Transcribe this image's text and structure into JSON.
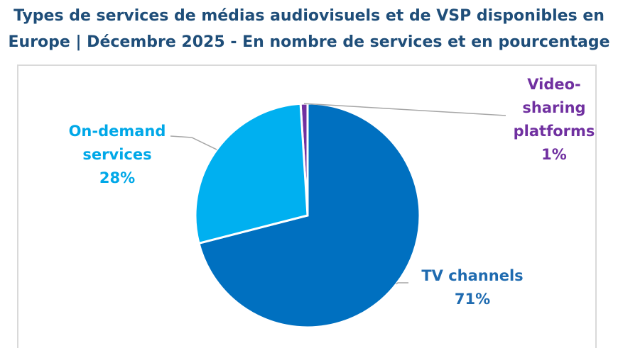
{
  "title_line1": "Types de services de médias audiovisuels et de VSP disponibles en",
  "title_line2": "Europe | Décembre 2025 - En nombre de services et en pourcentage",
  "chart_data": {
    "type": "pie",
    "title": "Types de services de médias audiovisuels et de VSP disponibles en Europe | Décembre 2025 - En nombre de services et en pourcentage",
    "slices": [
      {
        "label": "Video-sharing platforms",
        "value": 1,
        "pct_text": "1%",
        "color": "#7030a0",
        "label_color": "#7030a0"
      },
      {
        "label": "TV channels",
        "value": 71,
        "pct_text": "71%",
        "color": "#0070c0",
        "label_color": "#1f6bb0"
      },
      {
        "label": "On-demand services",
        "value": 28,
        "pct_text": "28%",
        "color": "#00b0f0",
        "label_color": "#00a8e8"
      }
    ]
  },
  "labels": {
    "vsp_line1": "Video-",
    "vsp_line2": "sharing",
    "vsp_line3": "platforms",
    "vsp_pct": "1%",
    "tv_line1": "TV channels",
    "tv_pct": "71%",
    "od_line1": "On-demand",
    "od_line2": "services",
    "od_pct": "28%"
  }
}
